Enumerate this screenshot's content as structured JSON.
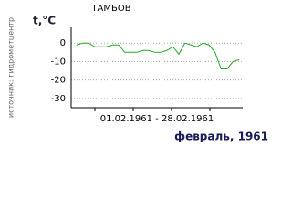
{
  "chart_data": {
    "type": "line",
    "title": "ТАМБОВ",
    "y_label": "t,°C",
    "source": "источник: гидрометцентр",
    "x_label": "01.02.1961 - 28.02.1961",
    "footer": "февраль, 1961",
    "series": [
      {
        "color": "#22aa22",
        "values": [
          -1,
          0,
          0,
          -2,
          -2,
          -2,
          -1,
          -1,
          -5,
          -5,
          -5,
          -4,
          -4,
          -5,
          -5,
          -4,
          -2,
          -6,
          0,
          -1,
          -2,
          0,
          -1,
          -5,
          -14,
          -14,
          -10,
          -9
        ]
      }
    ],
    "ylim": [
      -35,
      8.5
    ],
    "yticks": [
      0,
      -10,
      -20,
      -30
    ],
    "grid": true
  }
}
